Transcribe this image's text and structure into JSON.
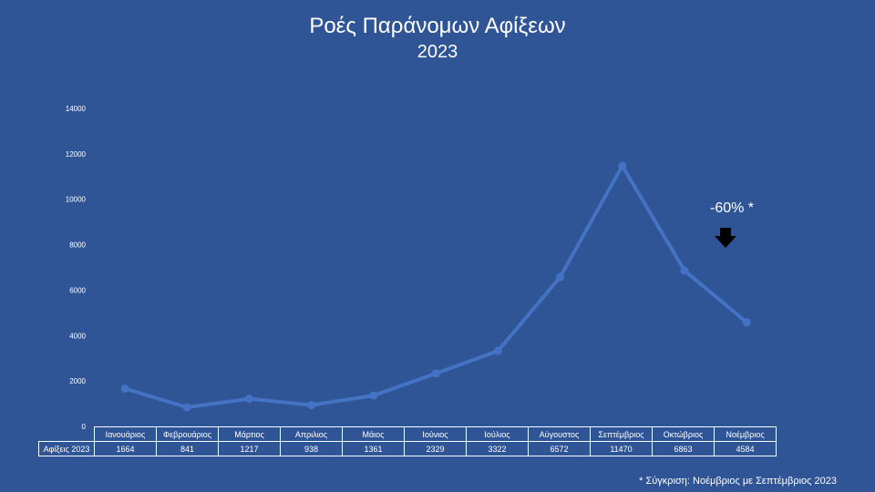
{
  "chart_data": {
    "type": "line",
    "title": "Ροές Παράνομων Αφίξεων",
    "subtitle": "2023",
    "categories": [
      "Ιανουάριος",
      "Φεβρουάριος",
      "Μάρτιος",
      "Απριλιος",
      "Μάιος",
      "Ιούνιος",
      "Ιούλιος",
      "Αύγουστος",
      "Σεπτέμβριος",
      "Οκτώβριος",
      "Νοέμβριος"
    ],
    "series": [
      {
        "name": "Αφίξεις 2023",
        "values": [
          1664,
          841,
          1217,
          938,
          1361,
          2329,
          3322,
          6572,
          11470,
          6863,
          4584
        ]
      }
    ],
    "ylim": [
      0,
      14000
    ],
    "yticks": [
      0,
      2000,
      4000,
      6000,
      8000,
      10000,
      12000,
      14000
    ],
    "grid": false,
    "line_color": "#4472c4",
    "annotation": "-60% *",
    "footnote": "* Σύγκριση: Νοέμβριος με Σεπτέμβριος 2023"
  }
}
